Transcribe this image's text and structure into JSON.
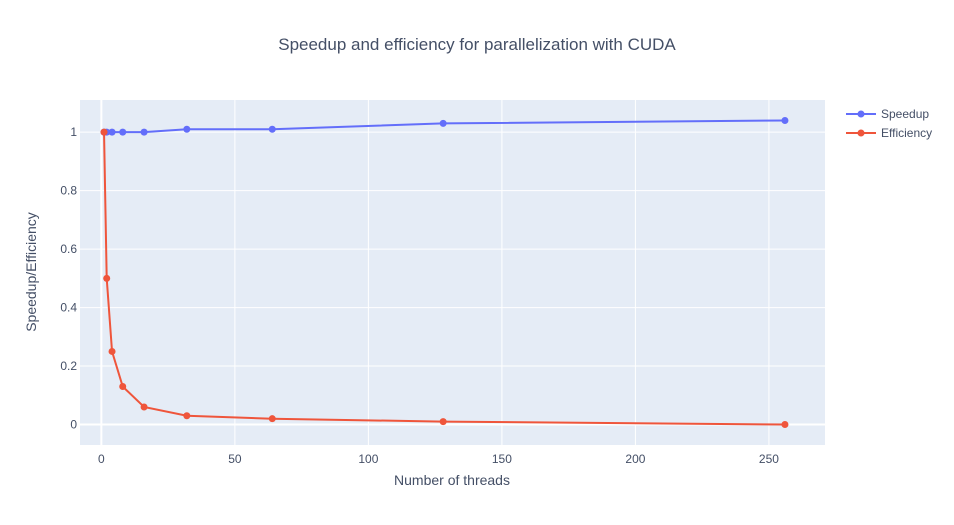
{
  "chart_data": {
    "type": "line",
    "title": "Speedup and efficiency for parallelization with CUDA",
    "xlabel": "Number of threads",
    "ylabel": "Speedup/Efficiency",
    "xlim": [
      -8,
      271
    ],
    "ylim": [
      -0.07,
      1.11
    ],
    "xticks": [
      0,
      50,
      100,
      150,
      200,
      250
    ],
    "yticks": [
      0,
      0.2,
      0.4,
      0.6,
      0.8,
      1
    ],
    "ytick_labels": [
      "0",
      "0.2",
      "0.4",
      "0.6",
      "0.8",
      "1"
    ],
    "grid": true,
    "legend_position": "top-right",
    "background_color": "#e5ecf6",
    "series": [
      {
        "name": "Speedup",
        "color": "#636efa",
        "x": [
          1,
          2,
          4,
          8,
          16,
          32,
          64,
          128,
          256
        ],
        "y": [
          1.0,
          1.0,
          1.0,
          1.0,
          1.0,
          1.01,
          1.01,
          1.03,
          1.04
        ]
      },
      {
        "name": "Efficiency",
        "color": "#ef553b",
        "x": [
          1,
          2,
          4,
          8,
          16,
          32,
          64,
          128,
          256
        ],
        "y": [
          1.0,
          0.5,
          0.25,
          0.13,
          0.06,
          0.03,
          0.02,
          0.01,
          0.0
        ]
      }
    ]
  }
}
